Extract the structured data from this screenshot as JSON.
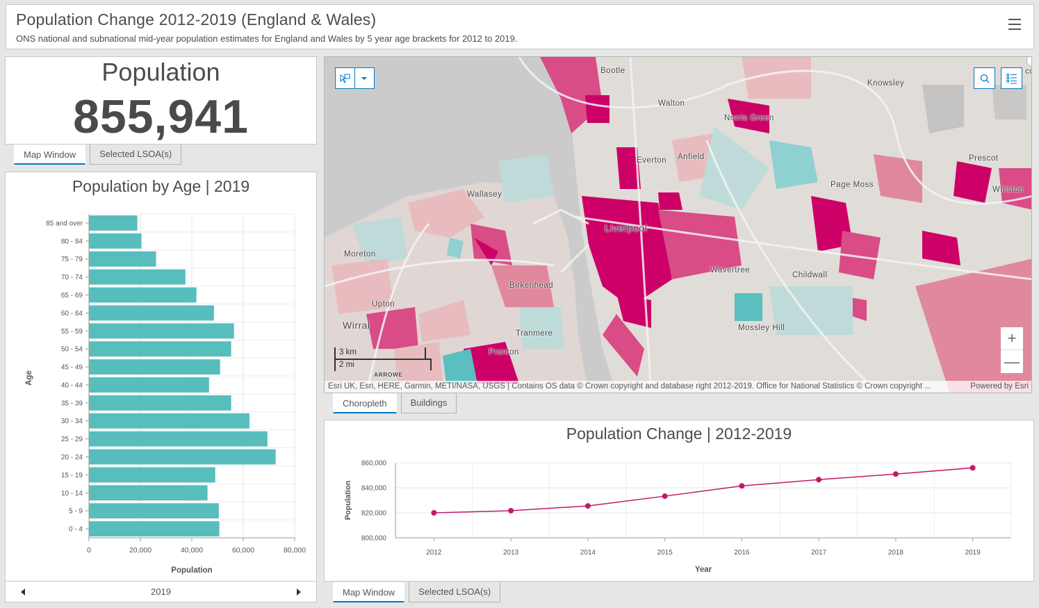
{
  "header": {
    "title": "Population Change 2012-2019 (England & Wales)",
    "subtitle": "ONS national and subnational mid-year population estimates for England and Wales by 5 year age brackets for 2012 to 2019.",
    "menu_icon": "hamburger-menu-icon"
  },
  "indicator": {
    "label": "Population",
    "value": "855,941"
  },
  "indicator_tabs": [
    {
      "label": "Map Window",
      "active": true
    },
    {
      "label": "Selected LSOA(s)",
      "active": false
    }
  ],
  "map": {
    "labels": [
      {
        "text": "Bootle"
      },
      {
        "text": "Knowsley"
      },
      {
        "text": "Walton"
      },
      {
        "text": "Norris Green"
      },
      {
        "text": "Everton"
      },
      {
        "text": "Anfield"
      },
      {
        "text": "Prescot"
      },
      {
        "text": "Whiston"
      },
      {
        "text": "Wallasey"
      },
      {
        "text": "Page Moss"
      },
      {
        "text": "Liverpool"
      },
      {
        "text": "Moreton"
      },
      {
        "text": "Wavertree"
      },
      {
        "text": "Childwall"
      },
      {
        "text": "Birkenhead"
      },
      {
        "text": "Upton"
      },
      {
        "text": "Wirral"
      },
      {
        "text": "Mossley Hill"
      },
      {
        "text": "Tranmere"
      },
      {
        "text": "Prenton"
      },
      {
        "text": "ARROWE"
      },
      {
        "text": "cc"
      }
    ],
    "scale_km": "3 km",
    "scale_mi": "2 mi",
    "attribution": "Esri UK, Esri, HERE, Garmin, METI/NASA, USGS | Contains OS data © Crown copyright and database right 2012-2019. Office for National Statistics © Crown copyright ...",
    "powered_by": "Powered by Esri",
    "zoom_in": "+",
    "zoom_out": "—",
    "colors": {
      "water": "#cbcbcb",
      "land": "#e0dcd8",
      "high": "#cc0066",
      "mid_high": "#d94c85",
      "mid": "#e0889c",
      "low_pink": "#e8bcbf",
      "neutral": "#e0d6d4",
      "low_teal": "#bfdbd9",
      "teal": "#8fd0d0",
      "strong_teal": "#5bbfbf"
    }
  },
  "map_tabs": [
    {
      "label": "Choropleth",
      "active": true
    },
    {
      "label": "Buildings",
      "active": false
    }
  ],
  "bottom_tabs": [
    {
      "label": "Map Window",
      "active": true
    },
    {
      "label": "Selected LSOA(s)",
      "active": false
    }
  ],
  "year_selector": {
    "value": "2019"
  },
  "chart_data": [
    {
      "type": "bar",
      "orientation": "horizontal",
      "title": "Population by Age | 2019",
      "xlabel": "Population",
      "ylabel": "Age",
      "xlim": [
        0,
        80000
      ],
      "xticks": [
        "0",
        "20,000",
        "40,000",
        "60,000",
        "80,000"
      ],
      "grid": true,
      "color": "#57bdbd",
      "categories": [
        "85 and over",
        "80 - 84",
        "75 - 79",
        "70 - 74",
        "65 - 69",
        "60 - 64",
        "55 - 59",
        "50 - 54",
        "45 - 49",
        "40 - 44",
        "35 - 39",
        "30 - 34",
        "25 - 29",
        "20 - 24",
        "15 - 19",
        "10 - 14",
        "5 - 9",
        "0 - 4"
      ],
      "values": [
        18800,
        20400,
        26100,
        37500,
        41800,
        48600,
        56400,
        55300,
        51000,
        46700,
        55300,
        62400,
        69400,
        72600,
        49100,
        46100,
        50500,
        50700
      ]
    },
    {
      "type": "line",
      "title": "Population Change | 2012-2019",
      "xlabel": "Year",
      "ylabel": "Population",
      "ylim": [
        800000,
        860000
      ],
      "yticks": [
        "800,000",
        "820,000",
        "840,000",
        "860,000"
      ],
      "grid": true,
      "color": "#c2186b",
      "x": [
        "2012",
        "2013",
        "2014",
        "2015",
        "2016",
        "2017",
        "2018",
        "2019"
      ],
      "values": [
        820000,
        821700,
        825500,
        833300,
        841500,
        846500,
        851000,
        855941
      ]
    }
  ]
}
